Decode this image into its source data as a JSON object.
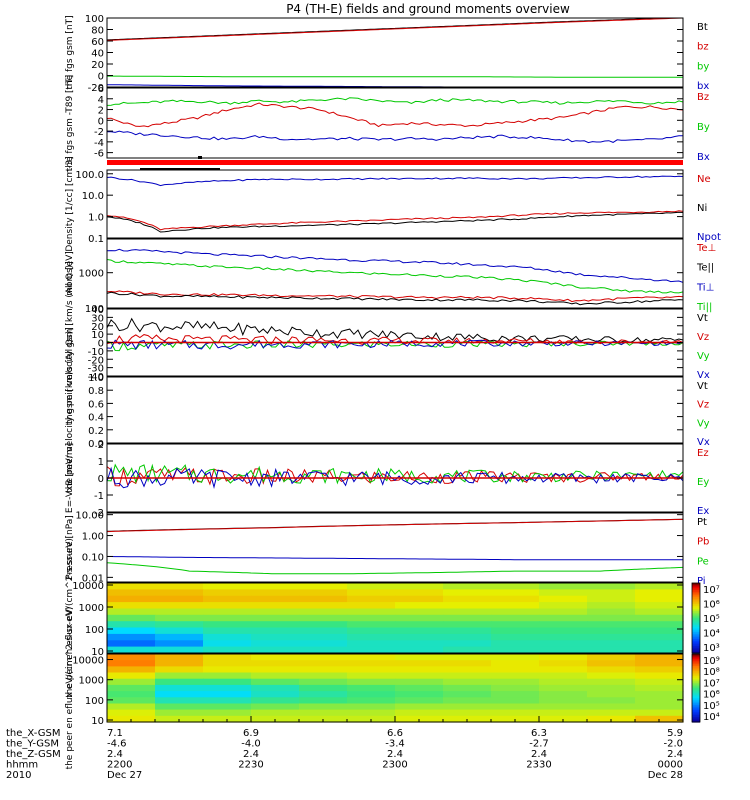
{
  "title": "P4 (TH-E) fields and ground moments overview",
  "chart_data": [
    {
      "type": "line",
      "ylabel": "the fgs gsm [nT]",
      "ylim": [
        -20,
        100
      ],
      "yticks": [
        "100",
        "80",
        "60",
        "40",
        "20",
        "0",
        "-20"
      ],
      "ytick_values": [
        100,
        80,
        60,
        40,
        20,
        0,
        -20
      ],
      "legend": [
        "Bt",
        "bz",
        "by",
        "bx"
      ],
      "series": [
        {
          "name": "Bt",
          "color": "#000000",
          "values": [
            62,
            70,
            78,
            86,
            94,
            101
          ]
        },
        {
          "name": "bz",
          "color": "#d40000",
          "values": [
            61,
            69,
            77,
            85,
            93,
            100
          ]
        },
        {
          "name": "by",
          "color": "#00c800",
          "values": [
            -1,
            -2,
            -2,
            -2,
            -3,
            -3
          ]
        },
        {
          "name": "bx",
          "color": "#0000c0",
          "values": [
            -16,
            -18,
            -19,
            -20,
            -21,
            -22
          ]
        }
      ]
    },
    {
      "type": "line",
      "ylabel": "the fgs gsm -T89 [nT]",
      "ylim": [
        -7,
        6
      ],
      "yticks": [
        "6",
        "4",
        "2",
        "0",
        "-2",
        "-4",
        "-6"
      ],
      "ytick_values": [
        6,
        4,
        2,
        0,
        -2,
        -4,
        -6
      ],
      "legend": [
        "Bz",
        "By",
        "Bx"
      ],
      "series": [
        {
          "name": "Bz",
          "color": "#d40000",
          "values": [
            0.5,
            -1.2,
            -0.5,
            0.5,
            2,
            3,
            2.5,
            2,
            0.5,
            -1,
            -0.5,
            -0.8,
            -1,
            -0.5,
            0,
            0.5,
            1.5,
            2.5,
            2.5,
            2
          ]
        },
        {
          "name": "By",
          "color": "#00c800",
          "values": [
            3,
            3.2,
            3.5,
            3.5,
            3.2,
            3.6,
            3.4,
            3.8,
            4,
            3.6,
            3.2,
            3.8,
            3.7,
            3.5,
            3.4,
            3.2,
            3.5,
            3.6,
            3.2,
            3.5
          ]
        },
        {
          "name": "Bx",
          "color": "#0000c0",
          "values": [
            -2,
            -2.5,
            -2.8,
            -3.2,
            -3.5,
            -3,
            -3.5,
            -3.5,
            -3.4,
            -3.6,
            -3.4,
            -3.5,
            -3.2,
            -3,
            -3.2,
            -3.6,
            -4,
            -3.8,
            -3.6,
            -3
          ]
        }
      ]
    },
    {
      "type": "line",
      "ylabel": "Density [1/cc] [cm-3]",
      "ylog": true,
      "ylim": [
        0.1,
        150
      ],
      "yticks": [
        "100.0",
        "10.0",
        "1.0",
        "0.1"
      ],
      "ytick_values": [
        100,
        10,
        1,
        0.1
      ],
      "legend": [
        "Ne",
        "Ni",
        "Npot"
      ],
      "series": [
        {
          "name": "Ne",
          "color": "#d40000",
          "values": [
            1.2,
            0.25,
            0.35,
            0.45,
            0.55,
            0.65,
            0.8,
            0.9,
            1.2,
            1.5,
            1.6,
            1.8
          ]
        },
        {
          "name": "Ni",
          "color": "#000000",
          "values": [
            1,
            0.2,
            0.3,
            0.35,
            0.4,
            0.45,
            0.55,
            0.65,
            0.8,
            1.1,
            1.3,
            1.5
          ]
        },
        {
          "name": "Npot",
          "color": "#0000c0",
          "values": [
            70,
            30,
            45,
            55,
            55,
            58,
            60,
            62,
            58,
            65,
            72,
            75
          ]
        }
      ]
    },
    {
      "type": "line",
      "ylabel": "mom [eV]",
      "ylog": true,
      "ylim": [
        100,
        9000
      ],
      "yticks": [
        "1000",
        "100"
      ],
      "ytick_values": [
        1000,
        100
      ],
      "legend": [
        "Te⊥",
        "Te||",
        "Ti⊥",
        "Ti||"
      ],
      "series": [
        {
          "name": "Te⊥",
          "color": "#d40000",
          "values": [
            300,
            250,
            240,
            230,
            220,
            210,
            200,
            200,
            190,
            160,
            190,
            200
          ]
        },
        {
          "name": "Te||",
          "color": "#000000",
          "values": [
            270,
            220,
            210,
            200,
            190,
            180,
            170,
            170,
            160,
            130,
            150,
            170
          ]
        },
        {
          "name": "Ti⊥",
          "color": "#0000c0",
          "values": [
            4500,
            4000,
            3300,
            2900,
            2500,
            2200,
            2000,
            1700,
            1400,
            900,
            700,
            550
          ]
        },
        {
          "name": "Ti||",
          "color": "#00c800",
          "values": [
            2200,
            1800,
            1500,
            1300,
            1100,
            950,
            850,
            750,
            600,
            400,
            300,
            280
          ]
        }
      ]
    },
    {
      "type": "line",
      "ylabel": "the peir velocity gsm [km/s (All Qs)]",
      "ylim": [
        -40,
        40
      ],
      "yticks": [
        "40",
        "30",
        "20",
        "10",
        "0",
        "-10",
        "-20",
        "-30",
        "-40"
      ],
      "ytick_values": [
        40,
        30,
        20,
        10,
        0,
        -10,
        -20,
        -30,
        -40
      ],
      "legend": [
        "Vt",
        "Vz",
        "Vy",
        "Vx"
      ],
      "series": [
        {
          "name": "Vt",
          "color": "#000000",
          "values": [
            22,
            20,
            18,
            15,
            12,
            10,
            8,
            6,
            5,
            4,
            3,
            3
          ]
        },
        {
          "name": "Vz",
          "color": "#d40000",
          "values": [
            4,
            4,
            3,
            3,
            3,
            2,
            2,
            2,
            2,
            1,
            1,
            1
          ]
        },
        {
          "name": "Vy",
          "color": "#00c800",
          "values": [
            -4,
            -4,
            -3,
            -3,
            -3,
            -2,
            -2,
            -2,
            -2,
            -1,
            -1,
            -1
          ]
        },
        {
          "name": "Vx",
          "color": "#0000c0",
          "values": [
            -2,
            -3,
            -3,
            -2,
            -2,
            -2,
            -1,
            -1,
            -1,
            -1,
            -1,
            -1
          ]
        }
      ]
    },
    {
      "type": "line",
      "ylabel": "the peer velocity gsm [km/s (All Qs)]",
      "ylim": [
        0,
        1
      ],
      "yticks": [
        "1.0",
        "0.8",
        "0.6",
        "0.4",
        "0.2",
        "0.0"
      ],
      "ytick_values": [
        1.0,
        0.8,
        0.6,
        0.4,
        0.2,
        0.0
      ],
      "legend": [
        "Vt",
        "Vz",
        "Vy",
        "Vx"
      ],
      "series": []
    },
    {
      "type": "line",
      "ylabel": "E=-VxB [mV/m]",
      "ylim": [
        -2,
        2
      ],
      "yticks": [
        "2",
        "1",
        "0",
        "-1",
        "-2"
      ],
      "ytick_values": [
        2,
        1,
        0,
        -1,
        -2
      ],
      "legend": [
        "Ez",
        "Ey",
        "Ex"
      ],
      "series": [
        {
          "name": "Ez",
          "color": "#d40000",
          "values": [
            0.1,
            0.1,
            0.1,
            0.05,
            0.05,
            0.05,
            0.05,
            0.05,
            0.05,
            0.05,
            0.1,
            0.1
          ]
        },
        {
          "name": "Ey",
          "color": "#00c800",
          "values": [
            0.3,
            0.25,
            0.2,
            0.2,
            0.15,
            0.15,
            0.1,
            0.1,
            0.1,
            0.1,
            0.15,
            0.2
          ]
        },
        {
          "name": "Ex",
          "color": "#0000c0",
          "values": [
            0,
            0,
            0,
            0,
            0,
            0,
            0,
            0,
            0,
            0,
            0,
            0
          ]
        }
      ]
    },
    {
      "type": "line",
      "ylabel": "Pressure [nPa]",
      "ylog": true,
      "ylim": [
        0.006,
        12
      ],
      "yticks": [
        "10.00",
        "1.00",
        "0.10",
        "0.01"
      ],
      "ytick_values": [
        10,
        1,
        0.1,
        0.01
      ],
      "legend": [
        "Pt",
        "Pb",
        "Pe",
        "Pi"
      ],
      "series": [
        {
          "name": "Pt",
          "color": "#000000",
          "values": [
            1.6,
            2,
            2.4,
            3,
            3.6,
            4.2,
            5,
            6
          ]
        },
        {
          "name": "Pb",
          "color": "#d40000",
          "values": [
            1.55,
            1.95,
            2.35,
            2.95,
            3.55,
            4.15,
            4.95,
            5.95
          ]
        },
        {
          "name": "Pe",
          "color": "#00c800",
          "values": [
            0.05,
            0.02,
            0.015,
            0.015,
            0.017,
            0.02,
            0.02,
            0.03
          ]
        },
        {
          "name": "Pi",
          "color": "#0000c0",
          "values": [
            0.1,
            0.09,
            0.085,
            0.08,
            0.075,
            0.07,
            0.07,
            0.07
          ]
        }
      ]
    },
    {
      "type": "heatmap",
      "ylabel": "the peir en eflux eV/(cm^2-s-sr-eV)",
      "ylog": true,
      "yticks": [
        "10000",
        "1000",
        "100",
        "10"
      ],
      "ytick_values": [
        10000,
        1000,
        100,
        10
      ],
      "colorbar_ticks": [
        "10⁷",
        "10⁶",
        "10⁵",
        "10⁴",
        "10³"
      ],
      "colorbar_range": [
        2.7,
        7
      ],
      "rows_energy": [
        10000,
        5000,
        2500,
        1200,
        600,
        300,
        150,
        75,
        40,
        20,
        10
      ],
      "cols": 12,
      "values": [
        [
          5.6,
          5.6,
          5.5,
          5.5,
          5.5,
          5.4,
          5.4,
          5.3,
          5.3,
          5.2,
          5.2,
          5.3
        ],
        [
          5.8,
          5.8,
          5.7,
          5.7,
          5.7,
          5.6,
          5.6,
          5.5,
          5.5,
          5.4,
          5.4,
          5.5
        ],
        [
          5.9,
          5.9,
          5.8,
          5.8,
          5.8,
          5.7,
          5.7,
          5.6,
          5.6,
          5.5,
          5.4,
          5.5
        ],
        [
          5.6,
          5.6,
          5.6,
          5.6,
          5.6,
          5.6,
          5.5,
          5.5,
          5.5,
          5.4,
          5.3,
          5.4
        ],
        [
          5.3,
          5.3,
          5.3,
          5.3,
          5.3,
          5.3,
          5.3,
          5.3,
          5.3,
          5.3,
          5.2,
          5.3
        ],
        [
          5.0,
          5.1,
          5.1,
          5.1,
          5.1,
          5.1,
          5.1,
          5.1,
          5.1,
          5.1,
          5.1,
          5.1
        ],
        [
          4.6,
          4.7,
          4.8,
          4.8,
          4.8,
          4.9,
          4.9,
          4.9,
          4.9,
          4.9,
          4.9,
          4.9
        ],
        [
          4.2,
          4.4,
          4.6,
          4.6,
          4.6,
          4.7,
          4.7,
          4.7,
          4.8,
          4.8,
          4.8,
          4.8
        ],
        [
          3.8,
          4.0,
          4.4,
          4.5,
          4.5,
          4.6,
          4.6,
          4.6,
          4.7,
          4.7,
          4.7,
          4.7
        ],
        [
          3.6,
          3.8,
          4.3,
          4.4,
          4.4,
          4.5,
          4.5,
          4.5,
          4.6,
          4.6,
          4.6,
          4.6
        ],
        [
          4.4,
          4.4,
          4.5,
          4.5,
          4.5,
          4.5,
          4.5,
          4.6,
          4.6,
          4.6,
          4.6,
          4.6
        ]
      ]
    },
    {
      "type": "heatmap",
      "ylabel": "the peer en eflux eV/(cm^2-s-sr-eV)",
      "ylog": true,
      "yticks": [
        "10000",
        "1000",
        "100",
        "10"
      ],
      "ytick_values": [
        10000,
        1000,
        100,
        10
      ],
      "colorbar_ticks": [
        "10⁹",
        "10⁸",
        "10⁷",
        "10⁶",
        "10⁵",
        "10⁴"
      ],
      "colorbar_range": [
        3.7,
        9
      ],
      "rows_energy": [
        15000,
        8000,
        4000,
        2000,
        1000,
        500,
        250,
        120,
        60,
        30,
        15
      ],
      "cols": 12,
      "values": [
        [
          7.9,
          7.6,
          7.3,
          7.2,
          7.2,
          7.2,
          7.1,
          7.1,
          7.1,
          7.2,
          7.4,
          7.6
        ],
        [
          8.0,
          7.6,
          7.3,
          7.3,
          7.3,
          7.3,
          7.3,
          7.3,
          7.2,
          7.3,
          7.5,
          7.6
        ],
        [
          7.6,
          7.3,
          7.2,
          7.2,
          7.2,
          7.2,
          7.2,
          7.2,
          7.2,
          7.2,
          7.3,
          7.4
        ],
        [
          7.2,
          6.8,
          6.8,
          6.9,
          6.9,
          7.0,
          7.0,
          7.0,
          7.0,
          7.0,
          7.1,
          7.2
        ],
        [
          6.8,
          6.3,
          6.3,
          6.5,
          6.6,
          6.7,
          6.7,
          6.8,
          6.8,
          6.9,
          6.9,
          7.0
        ],
        [
          6.5,
          5.8,
          5.8,
          6.0,
          6.3,
          6.4,
          6.5,
          6.6,
          6.7,
          6.8,
          6.8,
          6.9
        ],
        [
          6.4,
          5.6,
          5.6,
          5.9,
          6.1,
          6.3,
          6.4,
          6.5,
          6.6,
          6.7,
          6.8,
          6.8
        ],
        [
          6.5,
          6.0,
          6.0,
          6.2,
          6.3,
          6.4,
          6.5,
          6.6,
          6.6,
          6.7,
          6.7,
          6.8
        ],
        [
          6.9,
          6.5,
          6.5,
          6.6,
          6.7,
          6.7,
          6.8,
          6.8,
          6.8,
          6.8,
          6.8,
          6.8
        ],
        [
          7.1,
          6.8,
          6.8,
          6.9,
          6.9,
          6.9,
          7.0,
          7.0,
          7.0,
          7.0,
          7.0,
          7.0
        ],
        [
          7.2,
          7.0,
          7.0,
          7.0,
          7.0,
          7.0,
          7.1,
          7.1,
          7.1,
          7.1,
          7.2,
          7.5
        ]
      ]
    }
  ],
  "xaxis": {
    "rows": [
      {
        "label": "the_X-GSM",
        "values": [
          "7.1",
          "6.9",
          "6.6",
          "6.3",
          "5.9"
        ]
      },
      {
        "label": "the_Y-GSM",
        "values": [
          "-4.6",
          "-4.0",
          "-3.4",
          "-2.7",
          "-2.0"
        ]
      },
      {
        "label": "the_Z-GSM",
        "values": [
          "2.4",
          "2.4",
          "2.4",
          "2.4",
          "2.4"
        ]
      },
      {
        "label": "hhmm",
        "values": [
          "2200",
          "2230",
          "2300",
          "2330",
          "0000"
        ]
      },
      {
        "label": "2010",
        "values": [
          "Dec 27",
          "",
          "",
          "",
          "Dec 28"
        ]
      }
    ]
  }
}
